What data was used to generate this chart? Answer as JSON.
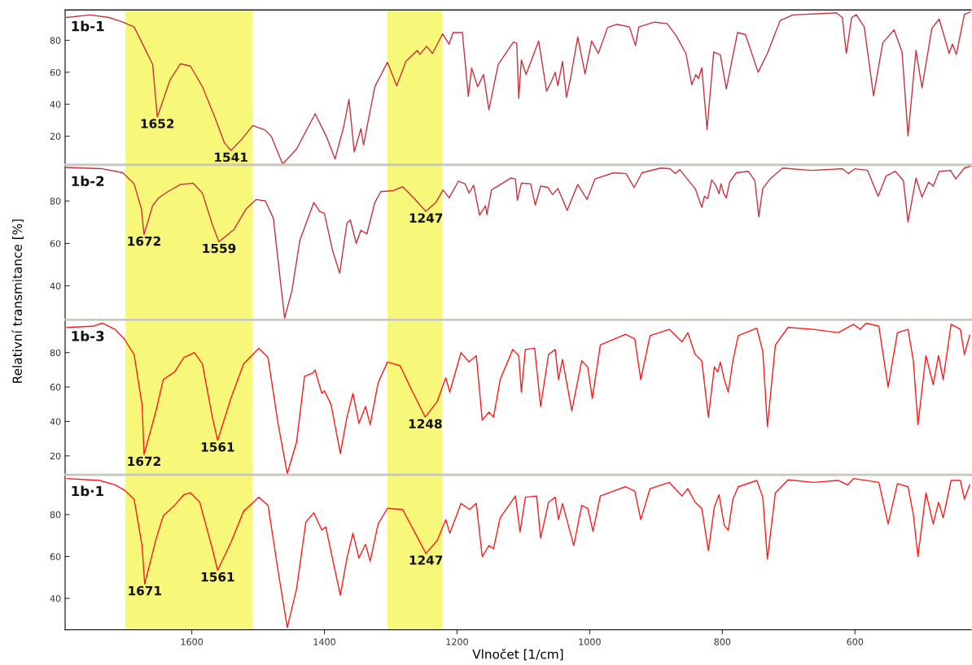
{
  "chart_data": [
    {
      "type": "line",
      "xlim": [
        1791,
        425
      ],
      "ylim": [
        2,
        99
      ],
      "yticks": [
        20,
        40,
        60,
        80
      ],
      "tick_labels": "y",
      "bands": [
        {
          "axis": "x",
          "from": 1700,
          "to": 1508,
          "color": "#f7f77a"
        },
        {
          "axis": "x",
          "from": 1305,
          "to": 1222,
          "color": "#f7f77a"
        }
      ],
      "annotations": [
        "1b-1",
        {
          "text": "1652",
          "x": 1652,
          "y": 32
        },
        {
          "text": "1541",
          "x": 1541,
          "y": 11
        }
      ],
      "series": [
        {
          "color": "#c8323c",
          "x": [
            1789,
            1753,
            1725,
            1704,
            1687,
            1673,
            1659,
            1652,
            1633,
            1617,
            1602,
            1584,
            1565,
            1551,
            1541,
            1525,
            1508,
            1489,
            1480,
            1463,
            1442,
            1414,
            1397,
            1384,
            1371,
            1363,
            1355,
            1345,
            1341,
            1324,
            1305,
            1291,
            1277,
            1260,
            1256,
            1246,
            1237,
            1222,
            1212,
            1206,
            1192,
            1183,
            1178,
            1169,
            1160,
            1152,
            1138,
            1115,
            1110,
            1107,
            1103,
            1096,
            1077,
            1065,
            1058,
            1052,
            1048,
            1041,
            1035,
            1029,
            1018,
            1007,
            997,
            987,
            973,
            959,
            940,
            931,
            926,
            902,
            883,
            869,
            855,
            846,
            840,
            836,
            831,
            823,
            813,
            803,
            794,
            777,
            765,
            746,
            732,
            713,
            694,
            628,
            619,
            613,
            605,
            598,
            586,
            572,
            558,
            541,
            529,
            520,
            508,
            499,
            484,
            473,
            458,
            453,
            447,
            435,
            426
          ],
          "values": [
            94.3,
            95.9,
            94.3,
            91.4,
            88.4,
            76.7,
            64.9,
            32,
            55,
            65.3,
            63.9,
            51,
            31.6,
            16,
            11,
            17.9,
            26.7,
            23.7,
            19.8,
            2.6,
            12,
            34,
            19.8,
            5.7,
            25.7,
            43,
            10,
            24.7,
            14.5,
            51,
            66.3,
            51.6,
            66.9,
            73.7,
            71.2,
            76.3,
            71.8,
            84,
            77.6,
            84.9,
            84.9,
            45,
            62.6,
            51,
            58.6,
            36.5,
            64.9,
            79,
            78.2,
            43.7,
            67.8,
            58.6,
            79.6,
            48.2,
            54,
            60,
            51.6,
            66.8,
            44.3,
            56,
            82.2,
            59,
            79.6,
            71.8,
            88,
            90,
            88.4,
            76.7,
            88.4,
            91.4,
            90.4,
            82.5,
            71.8,
            52.2,
            58.6,
            56,
            62.9,
            24.1,
            72.7,
            70.8,
            49.6,
            84.9,
            83.5,
            60,
            71.8,
            92.3,
            95.9,
            97.2,
            94.3,
            71.8,
            94.3,
            96,
            88.4,
            45.3,
            78.6,
            86.5,
            72.7,
            20.2,
            73.7,
            50.2,
            87.5,
            93.3,
            71.8,
            77.6,
            71.2,
            96.3,
            97.8
          ]
        }
      ]
    },
    {
      "type": "line",
      "ylabel": "Relativní transmitance [%]",
      "xlim": [
        1791,
        425
      ],
      "ylim": [
        24,
        97
      ],
      "yticks": [
        40,
        60,
        80
      ],
      "tick_labels": "y",
      "bands": [
        {
          "axis": "x",
          "from": 1700,
          "to": 1508,
          "color": "#f7f77a"
        },
        {
          "axis": "x",
          "from": 1305,
          "to": 1222,
          "color": "#f7f77a"
        }
      ],
      "annotations": [
        "1b-2",
        {
          "text": "1672",
          "x": 1672,
          "y": 64.2
        },
        {
          "text": "1559",
          "x": 1559,
          "y": 60.8
        },
        {
          "text": "1247",
          "x": 1247,
          "y": 75.1
        }
      ],
      "series": [
        {
          "color": "#c8323c",
          "x": [
            1789,
            1735,
            1704,
            1687,
            1676,
            1672,
            1659,
            1650,
            1636,
            1617,
            1598,
            1584,
            1569,
            1559,
            1536,
            1518,
            1503,
            1489,
            1477,
            1468,
            1460,
            1449,
            1437,
            1416,
            1407,
            1400,
            1388,
            1377,
            1366,
            1361,
            1352,
            1345,
            1336,
            1324,
            1315,
            1296,
            1282,
            1263,
            1247,
            1232,
            1221,
            1212,
            1198,
            1188,
            1182,
            1175,
            1166,
            1157,
            1155,
            1148,
            1119,
            1112,
            1109,
            1103,
            1089,
            1082,
            1074,
            1063,
            1056,
            1048,
            1034,
            1018,
            1004,
            992,
            964,
            945,
            933,
            921,
            893,
            879,
            871,
            864,
            853,
            841,
            831,
            827,
            822,
            816,
            810,
            805,
            802,
            798,
            794,
            789,
            779,
            761,
            751,
            745,
            739,
            728,
            709,
            666,
            619,
            610,
            600,
            581,
            565,
            553,
            539,
            527,
            520,
            508,
            499,
            489,
            482,
            473,
            456,
            448,
            435,
            426
          ],
          "values": [
            95.8,
            95.2,
            93.3,
            88.1,
            76.3,
            64.2,
            77.8,
            81.5,
            84.4,
            87.8,
            88.4,
            83.7,
            68.9,
            60.8,
            66.7,
            76.3,
            80.7,
            80,
            71.9,
            46.7,
            24.8,
            37.8,
            61.5,
            79.3,
            75.1,
            74.1,
            57,
            46,
            69.6,
            71.1,
            60,
            66.2,
            64.5,
            79.3,
            84.4,
            84.9,
            86.7,
            80.7,
            75.1,
            79.3,
            85.2,
            81.5,
            89.3,
            88.1,
            83.7,
            87.4,
            73.3,
            77.8,
            73.6,
            85.2,
            90.8,
            90.4,
            80.4,
            88.4,
            88.1,
            78.1,
            87,
            86.4,
            83,
            85.9,
            75.6,
            87.8,
            80.7,
            90.4,
            93.3,
            92.9,
            86.4,
            93.3,
            95.5,
            95.2,
            92.9,
            94.8,
            90.4,
            85.9,
            77,
            82.2,
            81.1,
            89.9,
            87.4,
            83.4,
            88.1,
            83.7,
            81.5,
            88.9,
            93.3,
            94,
            89.6,
            72.6,
            85.9,
            90.4,
            95.5,
            94.4,
            95.2,
            92.9,
            95.2,
            94.4,
            82.2,
            91.8,
            94,
            89.6,
            70.1,
            90.8,
            81.9,
            88.9,
            87,
            94,
            94.4,
            90.4,
            95.5,
            96.4
          ]
        }
      ]
    },
    {
      "type": "line",
      "xlim": [
        1791,
        425
      ],
      "ylim": [
        9,
        99
      ],
      "yticks": [
        20,
        40,
        60,
        80
      ],
      "tick_labels": "y",
      "bands": [
        {
          "axis": "x",
          "from": 1700,
          "to": 1508,
          "color": "#f7f77a"
        },
        {
          "axis": "x",
          "from": 1305,
          "to": 1222,
          "color": "#f7f77a"
        }
      ],
      "annotations": [
        "1b-3",
        {
          "text": "1672",
          "x": 1672,
          "y": 20.7
        },
        {
          "text": "1561",
          "x": 1561,
          "y": 29
        },
        {
          "text": "1248",
          "x": 1248,
          "y": 42.5
        }
      ],
      "series": [
        {
          "color": "#ff1a1a",
          "x": [
            1788,
            1749,
            1735,
            1716,
            1702,
            1687,
            1675,
            1672,
            1654,
            1643,
            1626,
            1612,
            1596,
            1584,
            1569,
            1561,
            1541,
            1522,
            1499,
            1485,
            1470,
            1456,
            1442,
            1430,
            1418,
            1414,
            1404,
            1400,
            1390,
            1376,
            1366,
            1357,
            1348,
            1338,
            1331,
            1319,
            1305,
            1286,
            1267,
            1248,
            1230,
            1217,
            1211,
            1194,
            1182,
            1171,
            1162,
            1152,
            1145,
            1135,
            1116,
            1107,
            1103,
            1097,
            1083,
            1074,
            1062,
            1052,
            1047,
            1041,
            1027,
            1012,
            1003,
            996,
            984,
            946,
            932,
            923,
            909,
            880,
            861,
            852,
            841,
            831,
            821,
            812,
            807,
            803,
            797,
            791,
            784,
            776,
            748,
            739,
            732,
            720,
            701,
            663,
            625,
            602,
            592,
            583,
            564,
            550,
            536,
            520,
            512,
            505,
            493,
            482,
            474,
            467,
            455,
            441,
            435,
            427
          ],
          "values": [
            94.6,
            95.3,
            97.1,
            93.5,
            88,
            78.9,
            49.8,
            20.7,
            46.1,
            64.3,
            68.7,
            77.1,
            80,
            73.4,
            42.5,
            29,
            53.4,
            73.4,
            82.5,
            77.1,
            38.9,
            9.7,
            28,
            66.2,
            68,
            69.8,
            56.3,
            57.8,
            49.8,
            21.4,
            42.5,
            56.3,
            38.9,
            48.7,
            38.1,
            62.5,
            74.5,
            72.4,
            57.1,
            42.5,
            51.6,
            65.4,
            57.1,
            80,
            74.5,
            78.2,
            40.7,
            45.4,
            42.5,
            64.3,
            81.8,
            78.2,
            57.1,
            81.8,
            82.5,
            48.7,
            78.9,
            81.8,
            64.3,
            76,
            46.1,
            75.3,
            71.6,
            53.4,
            84.4,
            90.6,
            88,
            64.3,
            89.8,
            93.5,
            86.2,
            91.6,
            78.9,
            75.3,
            42.5,
            71.6,
            68.7,
            74.5,
            64.3,
            57.1,
            75.3,
            89.8,
            94.2,
            80.7,
            37,
            84.4,
            94.6,
            93.5,
            91.6,
            96.4,
            93.5,
            97.1,
            95.3,
            60,
            91.6,
            93.5,
            75.3,
            38.1,
            78.2,
            61.4,
            78.2,
            64.3,
            96.4,
            93.5,
            78.9,
            90
          ]
        }
      ]
    },
    {
      "type": "line",
      "xlabel": "Vlnočet [1/cm]",
      "xlim": [
        1791,
        425
      ],
      "xticks": [
        1600,
        1400,
        1200,
        1000,
        800,
        600
      ],
      "ylim": [
        25,
        99
      ],
      "yticks": [
        40,
        60,
        80
      ],
      "bands": [
        {
          "axis": "x",
          "from": 1700,
          "to": 1508,
          "color": "#f7f77a"
        },
        {
          "axis": "x",
          "from": 1305,
          "to": 1222,
          "color": "#f7f77a"
        }
      ],
      "annotations": [
        "1b·1",
        {
          "text": "1671",
          "x": 1671,
          "y": 46.8
        },
        {
          "text": "1561",
          "x": 1561,
          "y": 53.4
        },
        {
          "text": "1247",
          "x": 1247,
          "y": 61.4
        }
      ],
      "series": [
        {
          "color": "#ff1a1a",
          "x": [
            1788,
            1739,
            1716,
            1702,
            1687,
            1675,
            1671,
            1654,
            1643,
            1626,
            1612,
            1602,
            1588,
            1569,
            1561,
            1541,
            1522,
            1499,
            1485,
            1470,
            1456,
            1442,
            1428,
            1416,
            1404,
            1398,
            1390,
            1376,
            1366,
            1357,
            1348,
            1338,
            1331,
            1319,
            1305,
            1282,
            1263,
            1247,
            1230,
            1217,
            1211,
            1194,
            1181,
            1171,
            1162,
            1152,
            1145,
            1135,
            1112,
            1105,
            1097,
            1080,
            1074,
            1062,
            1052,
            1047,
            1041,
            1024,
            1012,
            1003,
            995,
            984,
            946,
            932,
            923,
            909,
            880,
            861,
            852,
            841,
            831,
            821,
            812,
            805,
            797,
            791,
            784,
            776,
            748,
            739,
            732,
            720,
            701,
            663,
            625,
            611,
            602,
            564,
            550,
            536,
            520,
            512,
            505,
            493,
            482,
            474,
            467,
            455,
            441,
            435,
            427
          ],
          "values": [
            97.2,
            96.3,
            94.2,
            91.8,
            87.4,
            65.2,
            46.8,
            68.2,
            79.4,
            84.4,
            89.5,
            90.4,
            85.9,
            63.7,
            53.4,
            66.7,
            81.5,
            88.3,
            84.4,
            53.4,
            26.1,
            44.5,
            76.4,
            80.9,
            72.6,
            74.1,
            62.2,
            41.5,
            59.3,
            71.1,
            59.3,
            65.8,
            57.8,
            75.6,
            83,
            82.4,
            71.1,
            61.4,
            67.6,
            77.6,
            71.1,
            85.3,
            82.4,
            85.3,
            59.9,
            65.2,
            63.7,
            78.5,
            88.9,
            71.7,
            88.3,
            88.9,
            68.8,
            85.9,
            88.3,
            77.6,
            85.3,
            65.2,
            84.4,
            83,
            72,
            88.9,
            93.3,
            91.2,
            77.6,
            92.4,
            95.4,
            88.9,
            92.4,
            85.9,
            83,
            62.8,
            83.6,
            89.5,
            74.7,
            72.6,
            87.4,
            93.3,
            96.3,
            88.3,
            58.7,
            90.4,
            96.6,
            95.4,
            96.3,
            94.2,
            97.2,
            95.4,
            75.6,
            94.8,
            93.3,
            80,
            59.9,
            90.4,
            75.6,
            85.9,
            78.5,
            96.3,
            96.3,
            87.4,
            94.2
          ]
        }
      ]
    }
  ]
}
